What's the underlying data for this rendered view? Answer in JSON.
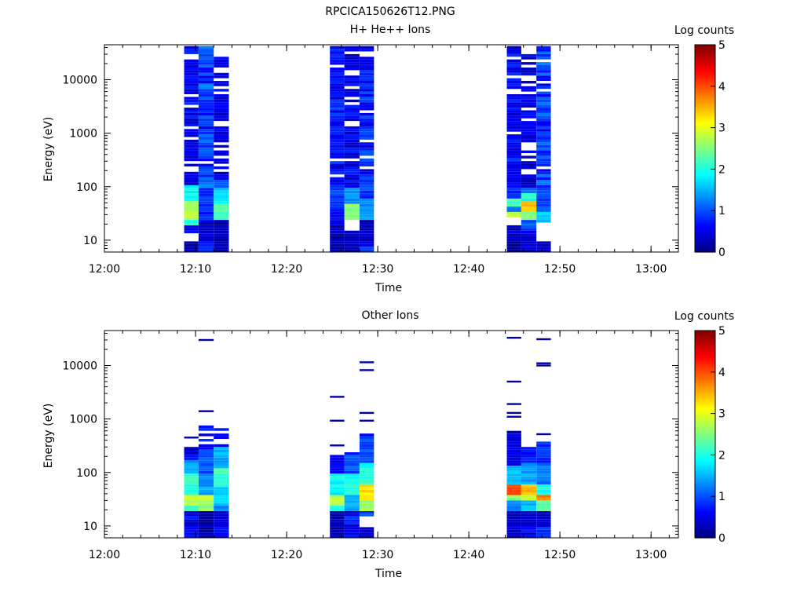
{
  "figure_title": "RPCICA150626T12.PNG",
  "colors": {
    "background": "#ffffff",
    "axis": "#000000",
    "jet_low": "#00008f",
    "jet_mid": "#00ffff",
    "jet_high": "#800000"
  },
  "chart_data": [
    {
      "type": "heatmap",
      "title": "H+ He++ Ions",
      "xlabel": "Time",
      "ylabel": "Energy (eV)",
      "y_scale": "log",
      "ylim": [
        6,
        45000
      ],
      "xlim": [
        "12:00",
        "13:03"
      ],
      "x_ticks": [
        "12:00",
        "12:10",
        "12:20",
        "12:30",
        "12:40",
        "12:50",
        "13:00"
      ],
      "y_ticks": [
        "10",
        "100",
        "1000",
        "10000"
      ],
      "colorbar": {
        "label": "Log counts",
        "range": [
          0,
          5
        ],
        "ticks": [
          "0",
          "1",
          "2",
          "3",
          "4",
          "5"
        ]
      },
      "grid": false,
      "columns": [
        {
          "start": "12:08:45",
          "end": "12:10:20",
          "seed": 11,
          "lows": [
            [
              6,
              10,
              0.3
            ],
            [
              10,
              14,
              -1
            ],
            [
              14,
              19,
              0.6
            ],
            [
              19,
              25,
              2.0
            ],
            [
              25,
              55,
              2.7
            ],
            [
              55,
              110,
              1.9
            ]
          ],
          "mid": 0.45,
          "base": 0.6,
          "gaps": 0.26,
          "emax": 42000
        },
        {
          "start": "12:10:20",
          "end": "12:12:00",
          "seed": 23,
          "lows": [
            [
              6,
              10,
              0.7
            ],
            [
              10,
              25,
              0.4
            ],
            [
              25,
              90,
              0.8
            ],
            [
              90,
              130,
              1.2
            ]
          ],
          "mid": 0.9,
          "base": 0.9,
          "gaps": 0.06,
          "emax": 42000
        },
        {
          "start": "12:12:00",
          "end": "12:13:40",
          "seed": 37,
          "lows": [
            [
              6,
              25,
              0.2
            ],
            [
              25,
              45,
              2.2
            ],
            [
              45,
              100,
              1.7
            ],
            [
              100,
              140,
              1.0
            ]
          ],
          "mid": 0.4,
          "base": 0.5,
          "gaps": 0.2,
          "emax": 31000
        },
        {
          "start": "12:24:45",
          "end": "12:26:20",
          "seed": 41,
          "lows": [
            [
              6,
              20,
              0.25
            ],
            [
              20,
              40,
              0.6
            ],
            [
              40,
              95,
              0.9
            ]
          ],
          "mid": 0.7,
          "base": 0.7,
          "gaps": 0.08,
          "emax": 42000
        },
        {
          "start": "12:26:20",
          "end": "12:28:00",
          "seed": 53,
          "lows": [
            [
              6,
              15,
              0.3
            ],
            [
              15,
              25,
              -1
            ],
            [
              25,
              45,
              2.6
            ],
            [
              45,
              100,
              1.4
            ]
          ],
          "mid": 0.55,
          "base": 0.55,
          "gaps": 0.3,
          "emax": 42000
        },
        {
          "start": "12:28:00",
          "end": "12:29:35",
          "seed": 67,
          "lows": [
            [
              9,
              25,
              0.3
            ],
            [
              25,
              60,
              1.4
            ],
            [
              60,
              140,
              0.9
            ]
          ],
          "mid": 0.75,
          "base": 0.75,
          "gaps": 0.12,
          "emax": 42000
        },
        {
          "start": "12:44:10",
          "end": "12:45:45",
          "seed": 71,
          "lows": [
            [
              6,
              20,
              0.3
            ],
            [
              20,
              27,
              -1
            ],
            [
              27,
              32,
              2.8
            ],
            [
              32,
              42,
              1.3
            ],
            [
              42,
              60,
              2.2
            ],
            [
              60,
              100,
              0.8
            ]
          ],
          "mid": 0.65,
          "base": 0.6,
          "gaps": 0.18,
          "emax": 42000
        },
        {
          "start": "12:45:45",
          "end": "12:47:25",
          "seed": 83,
          "lows": [
            [
              15,
              25,
              1.0
            ],
            [
              25,
              35,
              2.5
            ],
            [
              35,
              55,
              3.4
            ],
            [
              55,
              75,
              2.0
            ],
            [
              75,
              100,
              1.2
            ]
          ],
          "mid": 0.45,
          "base": 0.5,
          "gaps": 0.3,
          "emax": 32000
        },
        {
          "start": "12:47:25",
          "end": "12:49:00",
          "seed": 97,
          "lows": [
            [
              6,
              10,
              0.3
            ],
            [
              10,
              22,
              -1
            ],
            [
              22,
              35,
              1.6
            ],
            [
              35,
              100,
              1.0
            ]
          ],
          "mid": 0.95,
          "base": 0.9,
          "gaps": 0.05,
          "emax": 42000
        }
      ]
    },
    {
      "type": "heatmap",
      "title": "Other Ions",
      "xlabel": "Time",
      "ylabel": "Energy (eV)",
      "y_scale": "log",
      "ylim": [
        6,
        45000
      ],
      "xlim": [
        "12:00",
        "13:03"
      ],
      "x_ticks": [
        "12:00",
        "12:10",
        "12:20",
        "12:30",
        "12:40",
        "12:50",
        "13:00"
      ],
      "y_ticks": [
        "10",
        "100",
        "1000",
        "10000"
      ],
      "colorbar": {
        "label": "Log counts",
        "range": [
          0,
          5
        ],
        "ticks": [
          "0",
          "1",
          "2",
          "3",
          "4",
          "5"
        ]
      },
      "grid": false,
      "columns": [
        {
          "start": "12:08:45",
          "end": "12:10:20",
          "seed": 5,
          "lows": [
            [
              20,
              25,
              2.1
            ],
            [
              25,
              40,
              2.8
            ],
            [
              40,
              90,
              2.1
            ],
            [
              90,
              160,
              1.4
            ]
          ],
          "mid": 0.55,
          "base": 0.5,
          "gaps": 0.4,
          "emax": 300,
          "lines": [
            450,
            270,
            230
          ],
          "lineval": 0.2
        },
        {
          "start": "12:10:20",
          "end": "12:12:00",
          "seed": 13,
          "lows": [
            [
              6,
              20,
              0.2
            ],
            [
              20,
              30,
              2.6
            ],
            [
              30,
              40,
              3.0
            ],
            [
              40,
              100,
              1.4
            ],
            [
              100,
              260,
              1.0
            ]
          ],
          "mid": 0.6,
          "base": 0.5,
          "gaps": 0.35,
          "emax": 720,
          "lines": [
            30000,
            1400
          ],
          "lineval": 0.2
        },
        {
          "start": "12:12:00",
          "end": "12:13:40",
          "seed": 19,
          "lows": [
            [
              20,
              25,
              1.2
            ],
            [
              25,
              55,
              1.6
            ],
            [
              55,
              120,
              2.2
            ],
            [
              120,
              300,
              1.5
            ]
          ],
          "mid": 0.55,
          "base": 0.5,
          "gaps": 0.35,
          "emax": 620,
          "lines": [],
          "lineval": 0.2
        },
        {
          "start": "12:24:45",
          "end": "12:26:20",
          "seed": 29,
          "lows": [
            [
              6,
              15,
              0.2
            ],
            [
              20,
              25,
              2.1
            ],
            [
              25,
              40,
              2.7
            ],
            [
              40,
              90,
              1.9
            ],
            [
              90,
              220,
              0.6
            ]
          ],
          "mid": 0.4,
          "base": 0.4,
          "gaps": 0.3,
          "emax": 220,
          "lines": [
            2600,
            930,
            320
          ],
          "lineval": 0.2
        },
        {
          "start": "12:26:20",
          "end": "12:28:00",
          "seed": 31,
          "lows": [
            [
              15,
              20,
              0.4
            ],
            [
              20,
              40,
              1.5
            ],
            [
              40,
              95,
              2.0
            ],
            [
              95,
              220,
              1.0
            ]
          ],
          "mid": 0.7,
          "base": 0.6,
          "gaps": 0.15,
          "emax": 220,
          "lines": [],
          "lineval": 0.2
        },
        {
          "start": "12:28:00",
          "end": "12:29:35",
          "seed": 43,
          "lows": [
            [
              6,
              10,
              0.3
            ],
            [
              10,
              15,
              -1
            ],
            [
              15,
              20,
              1.0
            ],
            [
              20,
              30,
              2.6
            ],
            [
              30,
              60,
              3.3
            ],
            [
              60,
              150,
              2.0
            ],
            [
              150,
              500,
              1.0
            ]
          ],
          "mid": 0.5,
          "base": 0.5,
          "gaps": 0.15,
          "emax": 500,
          "lines": [
            11500,
            8200,
            1300,
            930
          ],
          "lineval": 0.2
        },
        {
          "start": "12:44:10",
          "end": "12:45:45",
          "seed": 59,
          "lows": [
            [
              10,
              20,
              0.3
            ],
            [
              20,
              30,
              1.2
            ],
            [
              30,
              40,
              2.6
            ],
            [
              40,
              60,
              4.0
            ],
            [
              60,
              140,
              1.6
            ],
            [
              140,
              550,
              0.5
            ]
          ],
          "mid": 0.4,
          "base": 0.4,
          "gaps": 0.15,
          "emax": 550,
          "lines": [
            33000,
            5000,
            1900,
            1300,
            1100
          ],
          "lineval": 0.2
        },
        {
          "start": "12:45:45",
          "end": "12:47:25",
          "seed": 61,
          "lows": [
            [
              10,
              20,
              0.3
            ],
            [
              20,
              30,
              1.6
            ],
            [
              30,
              40,
              2.8
            ],
            [
              40,
              60,
              3.4
            ],
            [
              60,
              150,
              1.4
            ],
            [
              150,
              270,
              0.7
            ]
          ],
          "mid": 0.6,
          "base": 0.5,
          "gaps": 0.2,
          "emax": 270,
          "lines": [],
          "lineval": 0.2
        },
        {
          "start": "12:47:25",
          "end": "12:49:00",
          "seed": 73,
          "lows": [
            [
              6,
              10,
              0.8
            ],
            [
              10,
              20,
              0.3
            ],
            [
              20,
              30,
              2.3
            ],
            [
              30,
              40,
              3.7
            ],
            [
              40,
              60,
              2.0
            ],
            [
              60,
              150,
              1.2
            ],
            [
              150,
              350,
              0.8
            ]
          ],
          "mid": 0.7,
          "base": 0.6,
          "gaps": 0.3,
          "emax": 350,
          "lines": [
            31000,
            11000,
            10000,
            520
          ],
          "lineval": 0.2
        }
      ]
    }
  ]
}
